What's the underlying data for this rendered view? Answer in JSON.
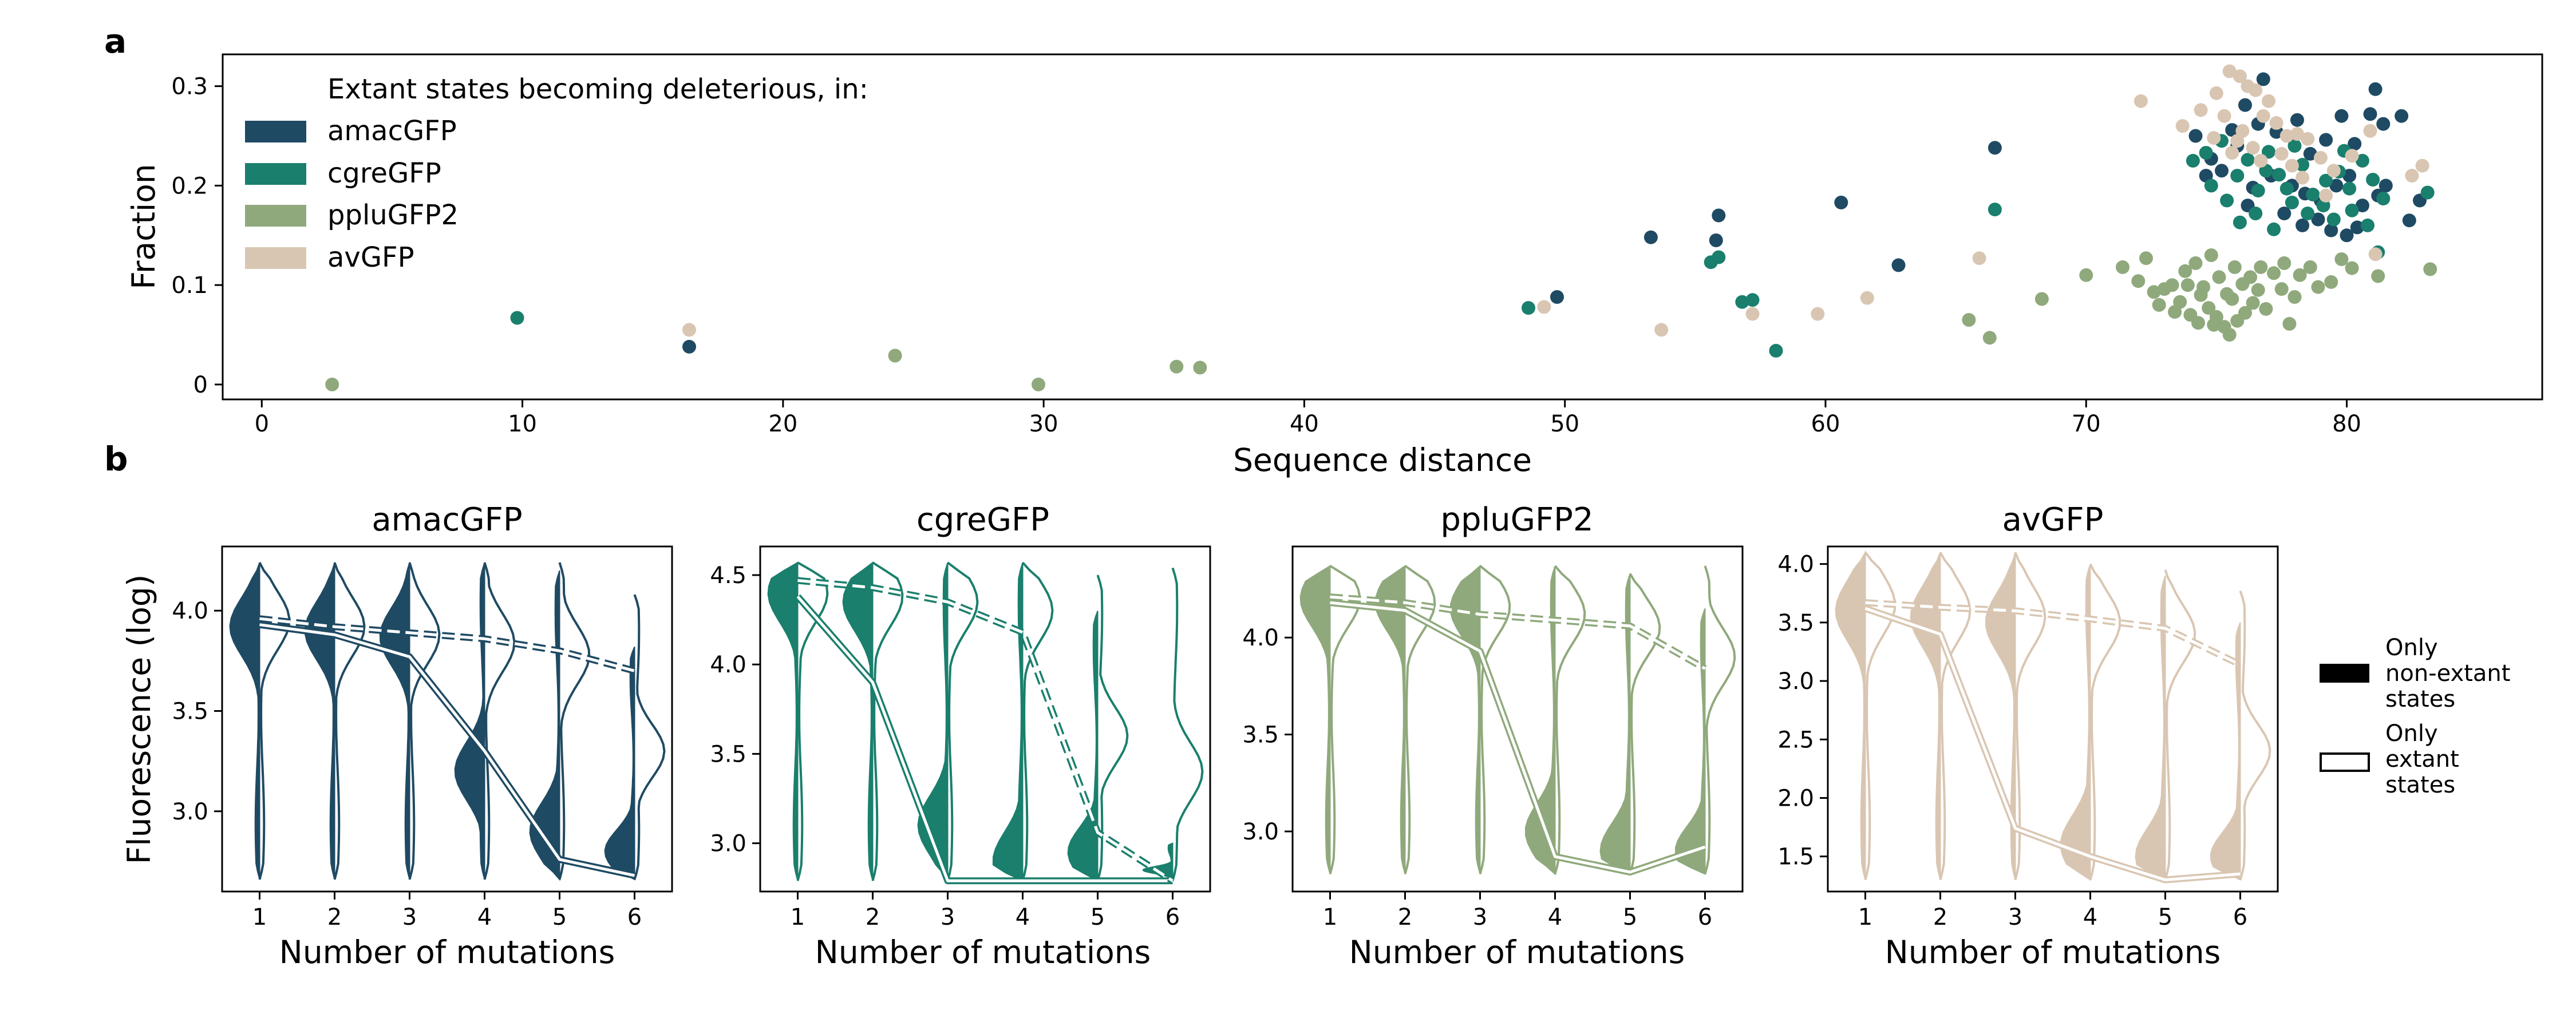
{
  "panel_labels": {
    "a": "a",
    "b": "b"
  },
  "colors": {
    "amacGFP": "#1f4a63",
    "cgreGFP": "#1a7f6d",
    "ppluGFP2": "#8fa97c",
    "avGFP": "#d9c6b2"
  },
  "chart_data": [
    {
      "type": "scatter",
      "title": "",
      "xlabel": "Sequence distance",
      "ylabel": "Fraction",
      "xlim": [
        -1.5,
        87.5
      ],
      "ylim": [
        -0.015,
        0.332
      ],
      "xticks": [
        0,
        10,
        20,
        30,
        40,
        50,
        60,
        70,
        80
      ],
      "yticks": [
        0,
        0.1,
        0.2,
        0.3
      ],
      "ytick_labels": [
        "0",
        "0.1",
        "0.2",
        "0.3"
      ],
      "grid": false,
      "legend": {
        "title": "Extant states becoming deleterious, in:",
        "position": "top-left",
        "entries": [
          "amacGFP",
          "cgreGFP",
          "ppluGFP2",
          "avGFP"
        ]
      },
      "series": [
        {
          "name": "amacGFP",
          "color": "#1f4a63",
          "points": [
            [
              16.4,
              0.038
            ],
            [
              49.7,
              0.088
            ],
            [
              53.3,
              0.148
            ],
            [
              55.9,
              0.17
            ],
            [
              55.8,
              0.145
            ],
            [
              60.6,
              0.183
            ],
            [
              62.8,
              0.12
            ],
            [
              66.5,
              0.238
            ],
            [
              74.2,
              0.25
            ],
            [
              74.8,
              0.227
            ],
            [
              75.6,
              0.256
            ],
            [
              76.1,
              0.281
            ],
            [
              76.6,
              0.262
            ],
            [
              76.8,
              0.307
            ],
            [
              77.3,
              0.254
            ],
            [
              78.1,
              0.266
            ],
            [
              78.6,
              0.232
            ],
            [
              79.2,
              0.246
            ],
            [
              79.8,
              0.27
            ],
            [
              80.3,
              0.242
            ],
            [
              80.9,
              0.272
            ],
            [
              81.1,
              0.297
            ],
            [
              81.4,
              0.262
            ],
            [
              82.1,
              0.27
            ],
            [
              75.2,
              0.215
            ],
            [
              76.4,
              0.198
            ],
            [
              77.1,
              0.21
            ],
            [
              77.9,
              0.2
            ],
            [
              78.4,
              0.192
            ],
            [
              79.0,
              0.185
            ],
            [
              79.6,
              0.2
            ],
            [
              80.1,
              0.21
            ],
            [
              80.6,
              0.18
            ],
            [
              81.2,
              0.19
            ],
            [
              82.4,
              0.165
            ],
            [
              78.3,
              0.16
            ],
            [
              78.9,
              0.166
            ],
            [
              79.4,
              0.155
            ],
            [
              80.0,
              0.15
            ],
            [
              80.4,
              0.158
            ],
            [
              76.2,
              0.18
            ],
            [
              77.6,
              0.172
            ],
            [
              81.5,
              0.2
            ],
            [
              82.8,
              0.185
            ],
            [
              75.8,
              0.24
            ],
            [
              74.6,
              0.21
            ]
          ]
        },
        {
          "name": "cgreGFP",
          "color": "#1a7f6d",
          "points": [
            [
              9.8,
              0.067
            ],
            [
              48.6,
              0.077
            ],
            [
              55.6,
              0.123
            ],
            [
              55.9,
              0.128
            ],
            [
              56.8,
              0.083
            ],
            [
              57.2,
              0.085
            ],
            [
              58.1,
              0.034
            ],
            [
              66.5,
              0.176
            ],
            [
              74.1,
              0.225
            ],
            [
              74.6,
              0.233
            ],
            [
              75.2,
              0.245
            ],
            [
              75.8,
              0.21
            ],
            [
              76.2,
              0.226
            ],
            [
              76.6,
              0.195
            ],
            [
              77.0,
              0.234
            ],
            [
              77.4,
              0.211
            ],
            [
              77.9,
              0.183
            ],
            [
              78.3,
              0.221
            ],
            [
              78.7,
              0.191
            ],
            [
              79.2,
              0.205
            ],
            [
              79.7,
              0.214
            ],
            [
              80.1,
              0.197
            ],
            [
              80.6,
              0.225
            ],
            [
              81.0,
              0.206
            ],
            [
              81.4,
              0.187
            ],
            [
              81.2,
              0.133
            ],
            [
              74.8,
              0.2
            ],
            [
              75.4,
              0.185
            ],
            [
              75.9,
              0.163
            ],
            [
              76.5,
              0.172
            ],
            [
              77.2,
              0.156
            ],
            [
              77.7,
              0.197
            ],
            [
              78.5,
              0.172
            ],
            [
              79.1,
              0.18
            ],
            [
              79.5,
              0.166
            ],
            [
              80.2,
              0.175
            ],
            [
              80.8,
              0.16
            ],
            [
              83.1,
              0.193
            ],
            [
              76.9,
              0.215
            ],
            [
              78.0,
              0.24
            ],
            [
              79.9,
              0.235
            ]
          ]
        },
        {
          "name": "ppluGFP2",
          "color": "#8fa97c",
          "points": [
            [
              2.7,
              0.0
            ],
            [
              24.3,
              0.029
            ],
            [
              29.8,
              0.0
            ],
            [
              35.1,
              0.018
            ],
            [
              36.0,
              0.017
            ],
            [
              65.5,
              0.065
            ],
            [
              66.3,
              0.047
            ],
            [
              68.3,
              0.086
            ],
            [
              70.0,
              0.11
            ],
            [
              71.4,
              0.118
            ],
            [
              72.0,
              0.104
            ],
            [
              72.3,
              0.127
            ],
            [
              72.6,
              0.093
            ],
            [
              73.0,
              0.096
            ],
            [
              73.3,
              0.1
            ],
            [
              73.6,
              0.083
            ],
            [
              73.8,
              0.114
            ],
            [
              74.2,
              0.122
            ],
            [
              74.5,
              0.098
            ],
            [
              74.8,
              0.13
            ],
            [
              75.1,
              0.108
            ],
            [
              75.4,
              0.091
            ],
            [
              75.7,
              0.118
            ],
            [
              76.0,
              0.101
            ],
            [
              76.3,
              0.108
            ],
            [
              76.7,
              0.118
            ],
            [
              77.2,
              0.112
            ],
            [
              77.6,
              0.122
            ],
            [
              78.2,
              0.11
            ],
            [
              78.6,
              0.118
            ],
            [
              79.4,
              0.103
            ],
            [
              79.8,
              0.126
            ],
            [
              80.2,
              0.117
            ],
            [
              81.2,
              0.109
            ],
            [
              83.2,
              0.116
            ],
            [
              72.8,
              0.08
            ],
            [
              73.4,
              0.073
            ],
            [
              74.0,
              0.07
            ],
            [
              74.3,
              0.062
            ],
            [
              74.7,
              0.077
            ],
            [
              75.0,
              0.068
            ],
            [
              75.3,
              0.058
            ],
            [
              75.5,
              0.05
            ],
            [
              75.8,
              0.064
            ],
            [
              76.1,
              0.072
            ],
            [
              76.4,
              0.082
            ],
            [
              76.9,
              0.076
            ],
            [
              77.5,
              0.096
            ],
            [
              78.0,
              0.088
            ],
            [
              78.9,
              0.098
            ],
            [
              77.8,
              0.061
            ],
            [
              75.6,
              0.086
            ],
            [
              74.4,
              0.09
            ],
            [
              76.6,
              0.095
            ],
            [
              74.9,
              0.06
            ],
            [
              73.9,
              0.1
            ]
          ]
        },
        {
          "name": "avGFP",
          "color": "#d9c6b2",
          "points": [
            [
              16.4,
              0.055
            ],
            [
              49.2,
              0.078
            ],
            [
              53.7,
              0.055
            ],
            [
              57.2,
              0.071
            ],
            [
              59.7,
              0.071
            ],
            [
              61.6,
              0.087
            ],
            [
              65.9,
              0.127
            ],
            [
              72.1,
              0.285
            ],
            [
              73.7,
              0.26
            ],
            [
              74.4,
              0.276
            ],
            [
              75.0,
              0.293
            ],
            [
              75.5,
              0.315
            ],
            [
              75.9,
              0.31
            ],
            [
              76.2,
              0.3
            ],
            [
              76.5,
              0.296
            ],
            [
              76.8,
              0.27
            ],
            [
              77.0,
              0.285
            ],
            [
              77.3,
              0.263
            ],
            [
              77.7,
              0.25
            ],
            [
              78.1,
              0.252
            ],
            [
              78.5,
              0.247
            ],
            [
              79.0,
              0.228
            ],
            [
              79.5,
              0.215
            ],
            [
              80.2,
              0.23
            ],
            [
              80.9,
              0.255
            ],
            [
              81.1,
              0.131
            ],
            [
              82.5,
              0.21
            ],
            [
              82.9,
              0.22
            ],
            [
              75.3,
              0.27
            ],
            [
              75.8,
              0.245
            ],
            [
              76.4,
              0.238
            ],
            [
              76.7,
              0.225
            ],
            [
              77.5,
              0.232
            ],
            [
              77.9,
              0.22
            ],
            [
              78.3,
              0.208
            ],
            [
              79.2,
              0.19
            ],
            [
              76.0,
              0.255
            ],
            [
              74.9,
              0.248
            ],
            [
              75.6,
              0.233
            ]
          ]
        }
      ]
    },
    {
      "type": "violin",
      "title": "amacGFP",
      "xlabel": "Number of mutations",
      "ylabel": "Fluorescence (log)",
      "color": "#1f4a63",
      "categories": [
        1,
        2,
        3,
        4,
        5,
        6
      ],
      "ylim": [
        2.6,
        4.32
      ],
      "yticks": [
        3.0,
        3.5,
        4.0
      ],
      "ytick_labels": [
        "3.0",
        "3.5",
        "4.0"
      ],
      "ymin": 2.66,
      "ymax": [
        4.24,
        4.24,
        4.24,
        4.24,
        4.24,
        4.08
      ],
      "filled_ymax": [
        4.24,
        4.24,
        4.24,
        4.24,
        4.2,
        3.82
      ],
      "filled_mode": [
        3.92,
        3.9,
        3.87,
        3.2,
        2.9,
        2.8
      ],
      "outline_mode": [
        3.95,
        3.92,
        3.88,
        3.84,
        3.78,
        3.3
      ],
      "filled_median": [
        3.93,
        3.88,
        3.77,
        3.3,
        2.76,
        2.68
      ],
      "outline_median": [
        3.96,
        3.92,
        3.89,
        3.86,
        3.8,
        3.7
      ]
    },
    {
      "type": "violin",
      "title": "cgreGFP",
      "xlabel": "Number of mutations",
      "ylabel": "",
      "color": "#1a7f6d",
      "categories": [
        1,
        2,
        3,
        4,
        5,
        6
      ],
      "ylim": [
        2.73,
        4.66
      ],
      "yticks": [
        3.0,
        3.5,
        4.0,
        4.5
      ],
      "ytick_labels": [
        "3.0",
        "3.5",
        "4.0",
        "4.5"
      ],
      "ymin": 2.79,
      "ymax": [
        4.57,
        4.57,
        4.57,
        4.57,
        4.5,
        4.54
      ],
      "filled_ymax": [
        4.57,
        4.57,
        4.57,
        4.57,
        4.3,
        3.0
      ],
      "filled_mode": [
        4.4,
        4.35,
        3.1,
        2.9,
        2.95,
        2.85
      ],
      "outline_mode": [
        4.4,
        4.38,
        4.35,
        4.3,
        3.6,
        3.4
      ],
      "filled_median": [
        4.38,
        3.9,
        2.79,
        2.79,
        2.79,
        2.79
      ],
      "outline_median": [
        4.47,
        4.43,
        4.35,
        4.18,
        3.06,
        2.79
      ]
    },
    {
      "type": "violin",
      "title": "ppluGFP2",
      "xlabel": "Number of mutations",
      "ylabel": "",
      "color": "#8fa97c",
      "categories": [
        1,
        2,
        3,
        4,
        5,
        6
      ],
      "ylim": [
        2.69,
        4.47
      ],
      "yticks": [
        3.0,
        3.5,
        4.0
      ],
      "ytick_labels": [
        "3.0",
        "3.5",
        "4.0"
      ],
      "ymin": 2.78,
      "ymax": [
        4.37,
        4.37,
        4.37,
        4.37,
        4.33,
        4.37
      ],
      "filled_ymax": [
        4.37,
        4.37,
        4.37,
        4.37,
        4.33,
        4.15
      ],
      "filled_mode": [
        4.2,
        4.18,
        4.15,
        3.0,
        2.9,
        2.9
      ],
      "outline_mode": [
        4.2,
        4.18,
        4.16,
        4.12,
        4.05,
        3.9
      ],
      "filled_median": [
        4.18,
        4.14,
        3.93,
        2.87,
        2.79,
        2.92
      ],
      "outline_median": [
        4.21,
        4.18,
        4.12,
        4.09,
        4.06,
        3.84
      ]
    },
    {
      "type": "violin",
      "title": "avGFP",
      "xlabel": "Number of mutations",
      "ylabel": "",
      "color": "#d9c6b2",
      "categories": [
        1,
        2,
        3,
        4,
        5,
        6
      ],
      "ylim": [
        1.2,
        4.15
      ],
      "yticks": [
        1.5,
        2.0,
        2.5,
        3.0,
        3.5,
        4.0
      ],
      "ytick_labels": [
        "1.5",
        "2.0",
        "2.5",
        "3.0",
        "3.5",
        "4.0"
      ],
      "ymin": 1.3,
      "ymax": [
        4.1,
        4.1,
        4.1,
        4.0,
        3.95,
        3.77
      ],
      "filled_ymax": [
        4.1,
        4.1,
        4.1,
        4.0,
        3.9,
        3.5
      ],
      "filled_mode": [
        3.6,
        3.55,
        3.5,
        1.6,
        1.5,
        1.5
      ],
      "outline_mode": [
        3.65,
        3.6,
        3.55,
        3.5,
        3.4,
        2.4
      ],
      "filled_median": [
        3.62,
        3.4,
        1.74,
        1.5,
        1.3,
        1.35
      ],
      "outline_median": [
        3.67,
        3.63,
        3.6,
        3.53,
        3.45,
        3.14
      ]
    }
  ],
  "legend_b": {
    "entries": [
      {
        "label_lines": [
          "Only",
          "non-extant",
          "states"
        ],
        "style": "filled"
      },
      {
        "label_lines": [
          "Only",
          "extant",
          "states"
        ],
        "style": "outline"
      }
    ]
  }
}
